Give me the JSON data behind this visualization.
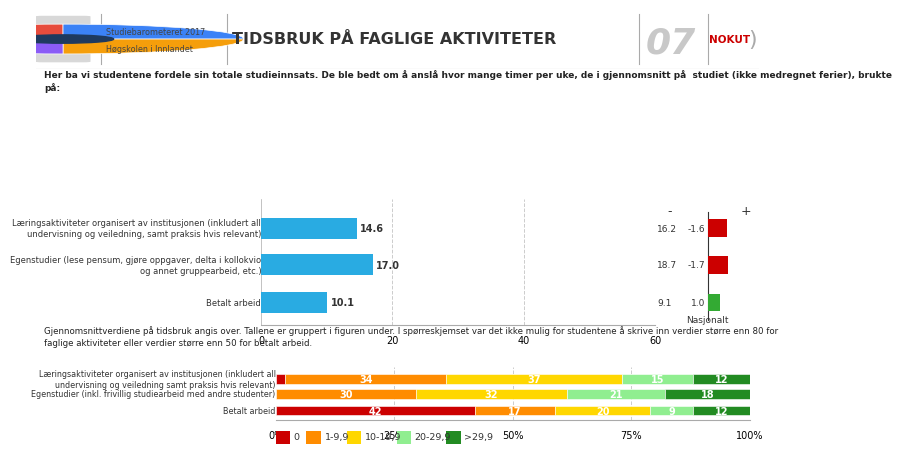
{
  "title": "TIDSBRUK PÅ FAGLIGE AKTIVITETER",
  "subtitle_line1": "Studiebarometeret 2017",
  "subtitle_line2": "Høgskolen i Innlandet",
  "chapter_num": "07",
  "description_text": "Her ba vi studentene fordele sin totale studieinnsats. De ble bedt om å anslå hvor mange timer per uke, de i gjennomsnitt på  studiet (ikke medregnet ferier), brukte\npå:",
  "bottom_text": "Gjennomsnittverdiene på tidsbruk angis over. Tallene er gruppert i figuren under. I spørreskjemset var det ikke mulig for studentene å skrive inn verdier større enn 80 for\nfaglige aktiviteter eller verdier større enn 50 for betalt arbeid.",
  "bar_labels": [
    "Læringsaktiviteter organisert av institusjonen (inkludert all\nundervisning og veiledning, samt praksis hvis relevant)",
    "Egenstudier (lese pensum, gjøre oppgaver, delta i kollokvio\nog annet gruppearbeid, etc.)",
    "Betalt arbeid"
  ],
  "bar_values": [
    14.6,
    17.0,
    10.1
  ],
  "bar_color": "#29ABE2",
  "national_values": [
    16.2,
    18.7,
    9.1
  ],
  "national_diff": [
    -1.6,
    -1.7,
    1.0
  ],
  "national_diff_colors": [
    "#CC0000",
    "#CC0000",
    "#33AA33"
  ],
  "national_label": "Nasjonalt",
  "stacked_labels": [
    "Læringsaktiviteter organisert av institusjonen (inkludert all\nundervisning og veiledning samt praksis hvis relevant)",
    "Egenstudier (inkl. frivillig studiearbeid med andre studenter)",
    "Betalt arbeid"
  ],
  "stacked_data": [
    [
      2,
      34,
      37,
      15,
      12
    ],
    [
      0,
      30,
      32,
      21,
      18
    ],
    [
      42,
      17,
      20,
      9,
      12
    ]
  ],
  "stacked_colors": [
    "#CC0000",
    "#FF8C00",
    "#FFD700",
    "#90EE90",
    "#228B22"
  ],
  "legend_labels": [
    "0",
    "1-9,9",
    "10-19,9",
    "20-29,9",
    ">29,9"
  ]
}
